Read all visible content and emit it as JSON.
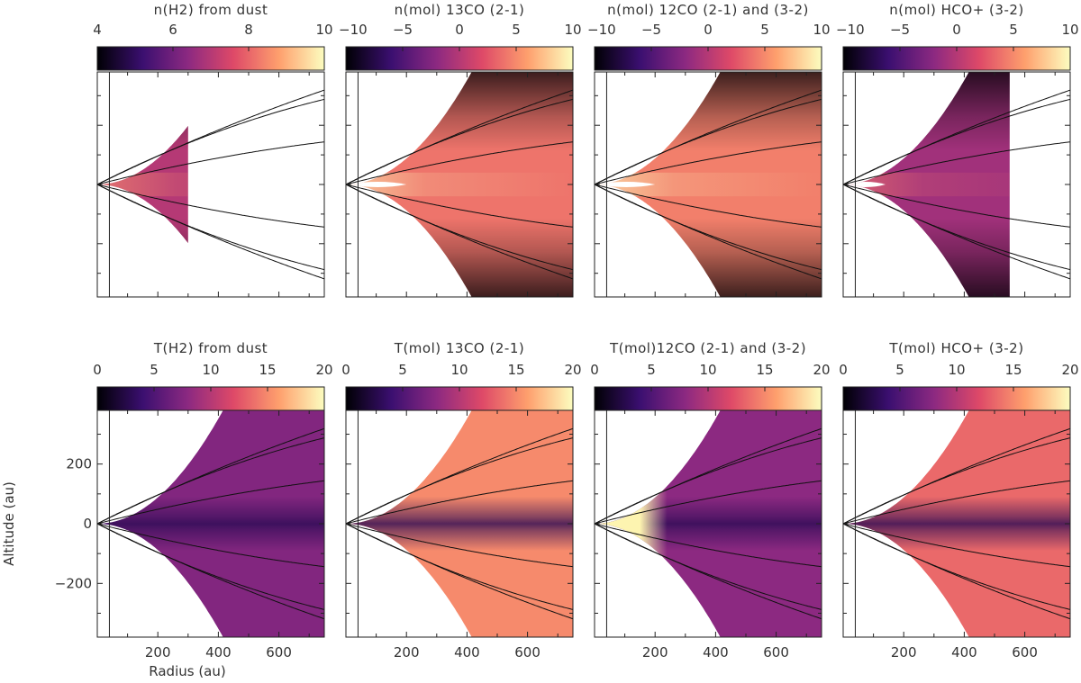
{
  "chart_data": {
    "type": "heatmap",
    "colormap": "magma",
    "colormap_stops": [
      "#000004",
      "#3b0f70",
      "#8c2981",
      "#de4968",
      "#fe9f6d",
      "#fcfdbf"
    ],
    "axes": {
      "xlabel": "Radius (au)",
      "ylabel": "Altitude (au)",
      "xlim": [
        0,
        750
      ],
      "ylim": [
        -380,
        380
      ],
      "xticks": [
        200,
        400,
        600
      ],
      "yticks": [
        -200,
        0,
        200
      ]
    },
    "streamline_slopes": [
      0.52,
      0.26,
      -0.26,
      -0.52
    ],
    "panels": [
      {
        "row": 0,
        "col": 0,
        "title": "n(H2) from dust",
        "quantity": "log density",
        "cbar_range": [
          4,
          10
        ],
        "cbar_ticks": [
          4,
          6,
          8,
          10
        ],
        "r_max": 300,
        "hole_end": 0,
        "base_value": 7.0,
        "show_x_ticklabels": false,
        "show_y_ticklabels": false
      },
      {
        "row": 0,
        "col": 1,
        "title": "n(mol) 13CO (2-1)",
        "quantity": "log density",
        "cbar_range": [
          -10,
          10
        ],
        "cbar_ticks": [
          -10,
          -5,
          0,
          5,
          10
        ],
        "r_max": 750,
        "hole_end": 200,
        "base_value": 4.0,
        "show_x_ticklabels": false,
        "show_y_ticklabels": false
      },
      {
        "row": 0,
        "col": 2,
        "title": "n(mol) 12CO (2-1) and (3-2)",
        "quantity": "log density",
        "cbar_range": [
          -10,
          10
        ],
        "cbar_ticks": [
          -10,
          -5,
          0,
          5,
          10
        ],
        "r_max": 750,
        "hole_end": 200,
        "base_value": 4.5,
        "show_x_ticklabels": false,
        "show_y_ticklabels": false
      },
      {
        "row": 0,
        "col": 3,
        "title": "n(mol) HCO+ (3-2)",
        "quantity": "log density",
        "cbar_range": [
          -10,
          10
        ],
        "cbar_ticks": [
          -10,
          -5,
          0,
          5,
          10
        ],
        "r_max": 550,
        "hole_end": 140,
        "base_value": -1.0,
        "show_x_ticklabels": false,
        "show_y_ticklabels": false
      },
      {
        "row": 1,
        "col": 0,
        "title": "T(H2) from dust",
        "quantity": "temperature",
        "cbar_range": [
          0,
          20
        ],
        "cbar_ticks": [
          0,
          5,
          10,
          15,
          20
        ],
        "r_max": 750,
        "hole_end": 0,
        "base_value": 7.5,
        "show_x_ticklabels": true,
        "show_y_ticklabels": true
      },
      {
        "row": 1,
        "col": 1,
        "title": "T(mol) 13CO (2-1)",
        "quantity": "temperature",
        "cbar_range": [
          0,
          20
        ],
        "cbar_ticks": [
          0,
          5,
          10,
          15,
          20
        ],
        "r_max": 750,
        "hole_end": 0,
        "base_value": 15.0,
        "show_x_ticklabels": true,
        "show_y_ticklabels": false
      },
      {
        "row": 1,
        "col": 2,
        "title": "T(mol)12CO (2-1) and (3-2)",
        "quantity": "temperature",
        "cbar_range": [
          0,
          20
        ],
        "cbar_ticks": [
          0,
          5,
          10,
          15,
          20
        ],
        "r_max": 750,
        "hole_end": 0,
        "base_value": 8.0,
        "show_x_ticklabels": true,
        "show_y_ticklabels": false
      },
      {
        "row": 1,
        "col": 3,
        "title": "T(mol) HCO+ (3-2)",
        "quantity": "temperature",
        "cbar_range": [
          0,
          20
        ],
        "cbar_ticks": [
          0,
          5,
          10,
          15,
          20
        ],
        "r_max": 750,
        "hole_end": 0,
        "base_value": 13.5,
        "show_x_ticklabels": true,
        "show_y_ticklabels": false
      }
    ]
  }
}
